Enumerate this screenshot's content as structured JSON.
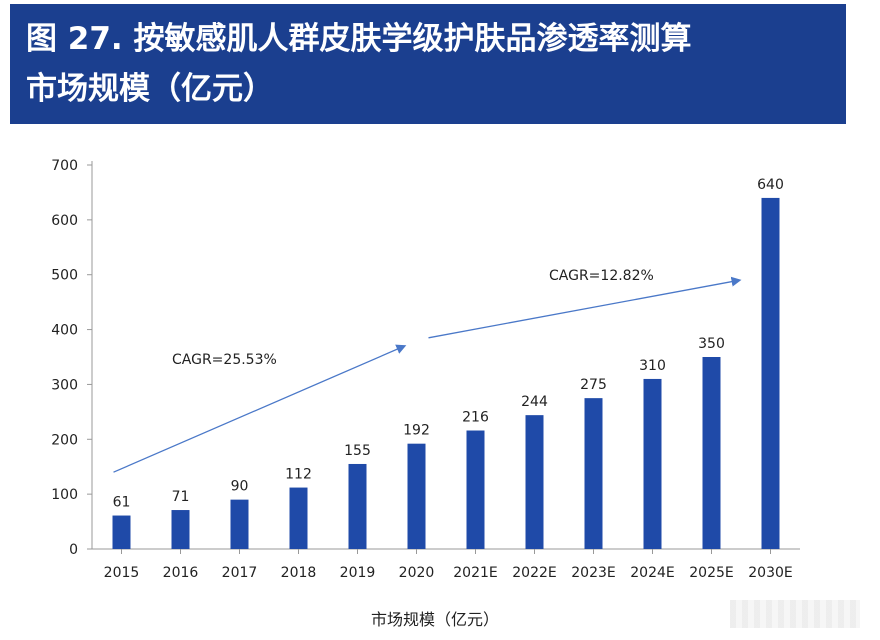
{
  "header": {
    "title_line1": "图 27. 按敏感肌人群皮肤学级护肤品渗透率测算",
    "title_line2": "市场规模（亿元）"
  },
  "colors": {
    "header_bg": "#1b3f8f",
    "bar": "#1f4aa8",
    "axis": "#999999",
    "arrow": "#4a78c8"
  },
  "chart_data": {
    "type": "bar",
    "title": "图 27. 按敏感肌人群皮肤学级护肤品渗透率测算市场规模（亿元）",
    "xlabel": "市场规模（亿元）",
    "ylabel": "",
    "categories": [
      "2015",
      "2016",
      "2017",
      "2018",
      "2019",
      "2020",
      "2021E",
      "2022E",
      "2023E",
      "2024E",
      "2025E",
      "2030E"
    ],
    "values": [
      61,
      71,
      90,
      112,
      155,
      192,
      216,
      244,
      275,
      310,
      350,
      640
    ],
    "ylim": [
      0,
      700
    ],
    "yticks": [
      0,
      100,
      200,
      300,
      400,
      500,
      600,
      700
    ],
    "grid": false,
    "annotations": [
      {
        "text": "CAGR=25.53%",
        "from": [
          "2015",
          140
        ],
        "to": [
          "2020",
          370
        ]
      },
      {
        "text": "CAGR=12.82%",
        "from": [
          "2020",
          385
        ],
        "to": [
          "2025E",
          490
        ]
      }
    ]
  }
}
